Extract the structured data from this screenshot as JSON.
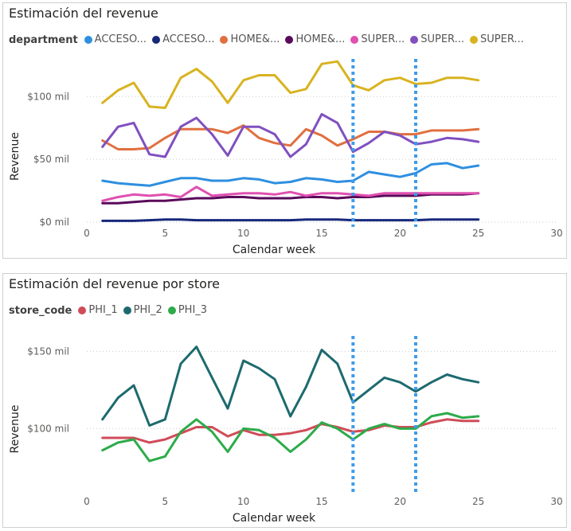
{
  "chart_data": [
    {
      "type": "line",
      "title": "Estimación del revenue",
      "legend_title": "department",
      "legend_placement": "top-left",
      "xlabel": "Calendar week",
      "ylabel": "Revenue",
      "xlim": [
        0,
        30
      ],
      "ylim": [
        0,
        130
      ],
      "x_ticks": [
        0,
        5,
        10,
        15,
        20,
        25,
        30
      ],
      "x_tick_labels": [
        "0",
        "5",
        "10",
        "15",
        "20",
        "25",
        "30"
      ],
      "y_ticks": [
        0,
        50,
        100
      ],
      "y_tick_labels": [
        "$0 mil",
        "$50 mil",
        "$100 mil"
      ],
      "grid": true,
      "reference_lines_x": [
        17,
        21
      ],
      "x": [
        1,
        2,
        3,
        4,
        5,
        6,
        7,
        8,
        9,
        10,
        11,
        12,
        13,
        14,
        15,
        16,
        17,
        18,
        19,
        20,
        21,
        22,
        23,
        24,
        25
      ],
      "series": [
        {
          "name": "ACCESO...",
          "color": "#2e8fe0",
          "values": [
            33,
            31,
            30,
            29,
            32,
            35,
            35,
            33,
            33,
            35,
            34,
            31,
            32,
            35,
            34,
            32,
            33,
            40,
            38,
            36,
            39,
            46,
            47,
            43,
            45
          ]
        },
        {
          "name": "ACCESO...",
          "color": "#17287a",
          "values": [
            1,
            1,
            1,
            1.5,
            2,
            2,
            1.5,
            1.5,
            1.5,
            1.5,
            1.5,
            1.5,
            1.5,
            2,
            2,
            2,
            1.5,
            1.5,
            1.5,
            1.5,
            1.5,
            2,
            2,
            2,
            2
          ]
        },
        {
          "name": "HOME&...",
          "color": "#e07040",
          "values": [
            65,
            58,
            58,
            59,
            67,
            74,
            74,
            74,
            71,
            77,
            67,
            63,
            61,
            74,
            69,
            61,
            66,
            72,
            72,
            70,
            70,
            73,
            73,
            73,
            74
          ]
        },
        {
          "name": "HOME&...",
          "color": "#5a0a5a",
          "values": [
            15,
            15,
            16,
            17,
            17,
            18,
            19,
            19,
            20,
            20,
            19,
            19,
            19,
            20,
            20,
            19,
            20,
            20,
            21,
            21,
            21,
            22,
            22,
            22,
            23
          ]
        },
        {
          "name": "SUPER...",
          "color": "#e050b0",
          "values": [
            17,
            20,
            22,
            21,
            22,
            20,
            28,
            21,
            22,
            23,
            23,
            22,
            24,
            21,
            23,
            23,
            22,
            21,
            23,
            23,
            23,
            23,
            23,
            23,
            23
          ]
        },
        {
          "name": "SUPER...",
          "color": "#8050c0",
          "values": [
            60,
            76,
            79,
            54,
            52,
            76,
            83,
            70,
            53,
            76,
            76,
            70,
            52,
            62,
            86,
            79,
            56,
            63,
            72,
            69,
            62,
            64,
            67,
            66,
            64
          ]
        },
        {
          "name": "SUPER...",
          "color": "#d8b320",
          "values": [
            95,
            105,
            111,
            92,
            91,
            115,
            122,
            112,
            95,
            113,
            117,
            117,
            103,
            106,
            126,
            128,
            109,
            105,
            113,
            115,
            110,
            111,
            115,
            115,
            113
          ]
        }
      ]
    },
    {
      "type": "line",
      "title": "Estimación del revenue por store",
      "legend_title": "store_code",
      "legend_placement": "top-left",
      "xlabel": "Calendar week",
      "ylabel": "Revenue",
      "xlim": [
        0,
        30
      ],
      "ylim": [
        60,
        160
      ],
      "x_ticks": [
        0,
        5,
        10,
        15,
        20,
        25,
        30
      ],
      "x_tick_labels": [
        "0",
        "5",
        "10",
        "15",
        "20",
        "25",
        "30"
      ],
      "y_ticks": [
        100,
        150
      ],
      "y_tick_labels": [
        "$100 mil",
        "$150 mil"
      ],
      "grid": true,
      "reference_lines_x": [
        17,
        21
      ],
      "x": [
        1,
        2,
        3,
        4,
        5,
        6,
        7,
        8,
        9,
        10,
        11,
        12,
        13,
        14,
        15,
        16,
        17,
        18,
        19,
        20,
        21,
        22,
        23,
        24,
        25
      ],
      "series": [
        {
          "name": "PHI_1",
          "color": "#d04c58",
          "values": [
            94,
            94,
            94,
            91,
            93,
            97,
            101,
            101,
            95,
            99,
            96,
            96,
            97,
            99,
            103,
            101,
            98,
            99,
            102,
            101,
            101,
            104,
            106,
            105,
            105
          ]
        },
        {
          "name": "PHI_2",
          "color": "#1d6a6e",
          "values": [
            106,
            120,
            128,
            102,
            106,
            142,
            153,
            133,
            113,
            144,
            139,
            132,
            108,
            127,
            151,
            142,
            117,
            125,
            133,
            130,
            124,
            130,
            135,
            132,
            130
          ]
        },
        {
          "name": "PHI_3",
          "color": "#2dab4a",
          "values": [
            86,
            91,
            93,
            79,
            82,
            98,
            106,
            98,
            85,
            100,
            99,
            94,
            85,
            93,
            104,
            100,
            93,
            100,
            103,
            100,
            100,
            108,
            110,
            107,
            108
          ]
        }
      ]
    }
  ]
}
